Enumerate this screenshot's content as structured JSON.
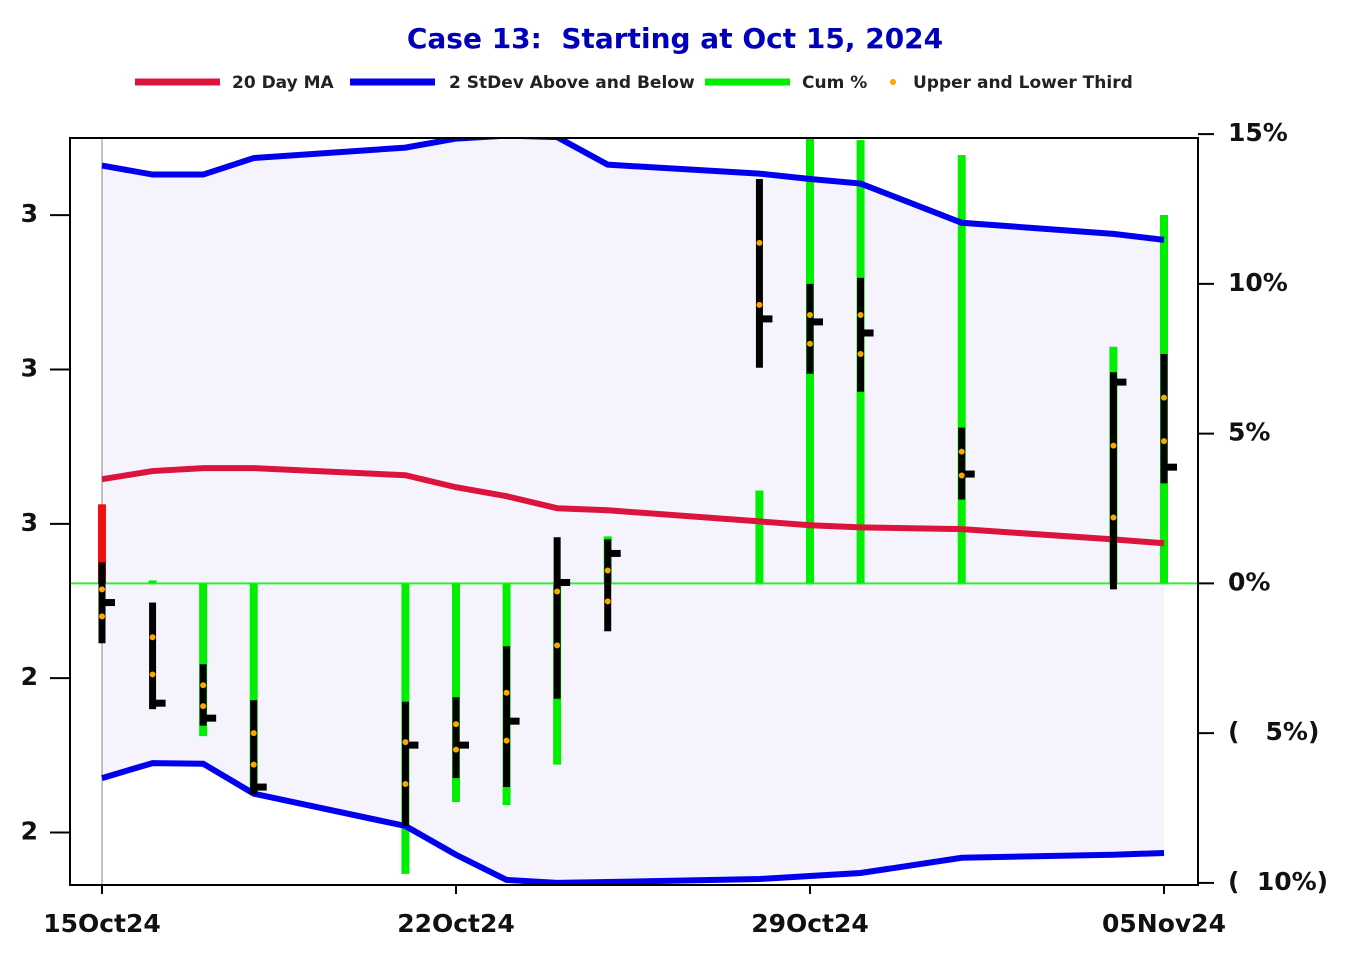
{
  "chart_data": {
    "type": "line",
    "title": "Case 13:  Starting at Oct 15, 2024",
    "x": [
      "2024-10-15",
      "2024-10-16",
      "2024-10-17",
      "2024-10-18",
      "2024-10-21",
      "2024-10-22",
      "2024-10-23",
      "2024-10-24",
      "2024-10-25",
      "2024-10-28",
      "2024-10-29",
      "2024-10-30",
      "2024-11-01",
      "2024-11-04",
      "2024-11-05"
    ],
    "xticks": [
      {
        "value": "2024-10-15",
        "label": "15Oct24"
      },
      {
        "value": "2024-10-22",
        "label": "22Oct24"
      },
      {
        "value": "2024-10-29",
        "label": "29Oct24"
      },
      {
        "value": "2024-11-05",
        "label": "05Nov24"
      }
    ],
    "ylim": [
      2.383,
      2.625
    ],
    "yticks": [
      {
        "value": 2.6,
        "label": "3"
      },
      {
        "value": 2.55,
        "label": "3"
      },
      {
        "value": 2.5,
        "label": "3"
      },
      {
        "value": 2.45,
        "label": "2"
      },
      {
        "value": 2.4,
        "label": "2"
      }
    ],
    "y2lim": [
      -10.07,
      14.87
    ],
    "y2ticks": [
      {
        "value": 15,
        "label": "15%"
      },
      {
        "value": 10,
        "label": "10%"
      },
      {
        "value": 5,
        "label": "5%"
      },
      {
        "value": 0,
        "label": "0%"
      },
      {
        "value": -5,
        "label": "(   5%)"
      },
      {
        "value": -10,
        "label": "(  10%)"
      }
    ],
    "zero_line_color": "#33ee33",
    "series": [
      {
        "name": "20 Day MA",
        "color": "#dc143c",
        "axis": "y2",
        "values": [
          3.48,
          3.75,
          3.85,
          3.85,
          3.61,
          3.21,
          2.91,
          2.51,
          2.44,
          2.07,
          1.94,
          1.87,
          1.81,
          1.47,
          1.34
        ]
      },
      {
        "name": "2 StDev Above and Below",
        "color": "#0000ee",
        "axis": "y2",
        "fill": "#f5f4fc",
        "upper": [
          13.95,
          13.65,
          13.65,
          14.2,
          14.55,
          14.85,
          14.95,
          14.9,
          13.98,
          13.68,
          13.5,
          13.35,
          12.04,
          11.67,
          11.47
        ],
        "lower": [
          -6.5,
          -6.0,
          -6.02,
          -7.02,
          -8.1,
          -9.06,
          -9.9,
          -10.0,
          -9.97,
          -9.87,
          -9.77,
          -9.67,
          -9.16,
          -9.06,
          -9.0
        ]
      },
      {
        "name": "Cum %",
        "color": "#00ee00",
        "axis": "y2",
        "colors": [
          "#ee1111",
          "#00ee00",
          "#00ee00",
          "#00ee00",
          "#00ee00",
          "#00ee00",
          "#00ee00",
          "#00ee00",
          "#00ee00",
          "#00ee00",
          "#00ee00",
          "#00ee00",
          "#00ee00",
          "#00ee00",
          "#00ee00"
        ],
        "values": [
          2.64,
          0.1,
          -5.1,
          -7.0,
          -9.7,
          -7.3,
          -7.4,
          -6.05,
          1.57,
          3.1,
          14.9,
          14.8,
          14.3,
          7.9,
          12.3
        ]
      },
      {
        "name": "Upper and Lower Third",
        "color": "#ffa500",
        "axis": "y2",
        "upper": [
          -0.2,
          -1.8,
          -3.4,
          -5.0,
          -5.3,
          -4.7,
          -3.65,
          -0.27,
          0.43,
          11.37,
          8.96,
          8.96,
          4.4,
          4.6,
          6.2
        ],
        "lower": [
          -1.1,
          -3.04,
          -4.1,
          -6.05,
          -6.7,
          -5.55,
          -5.25,
          -2.07,
          -0.6,
          9.3,
          8.0,
          7.66,
          3.6,
          2.2,
          4.75
        ]
      }
    ],
    "ranges": {
      "color": "#000000",
      "axis": "y2",
      "high": [
        0.7,
        -0.64,
        -2.7,
        -3.9,
        -3.95,
        -3.8,
        -2.1,
        1.54,
        1.47,
        13.5,
        10.0,
        10.2,
        5.2,
        7.05,
        7.66
      ],
      "low": [
        -2.0,
        -4.2,
        -4.75,
        -7.05,
        -8.1,
        -6.5,
        -6.8,
        -3.85,
        -1.6,
        7.2,
        7.0,
        6.4,
        2.8,
        -0.2,
        3.34
      ],
      "close": [
        -0.64,
        -4.0,
        -4.5,
        -6.8,
        -5.4,
        -5.4,
        -4.6,
        0.03,
        1.0,
        8.83,
        8.73,
        8.36,
        3.65,
        6.72,
        3.88
      ]
    }
  }
}
